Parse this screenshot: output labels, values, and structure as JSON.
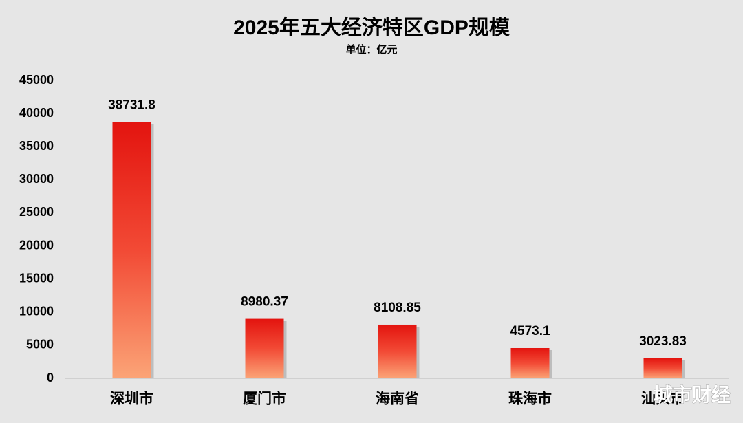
{
  "chart_data": {
    "type": "bar",
    "title": "2025年五大经济特区GDP规模",
    "subtitle": "单位：亿元",
    "categories": [
      "深圳市",
      "厦门市",
      "海南省",
      "珠海市",
      "汕头市"
    ],
    "values": [
      38731.8,
      8980.37,
      8108.85,
      4573.1,
      3023.83
    ],
    "color": "#e3140f",
    "ylim": [
      0,
      45000
    ],
    "yticks": [
      0,
      5000,
      10000,
      15000,
      20000,
      25000,
      30000,
      35000,
      40000,
      45000
    ],
    "grid": false,
    "watermark": "城市财经"
  }
}
